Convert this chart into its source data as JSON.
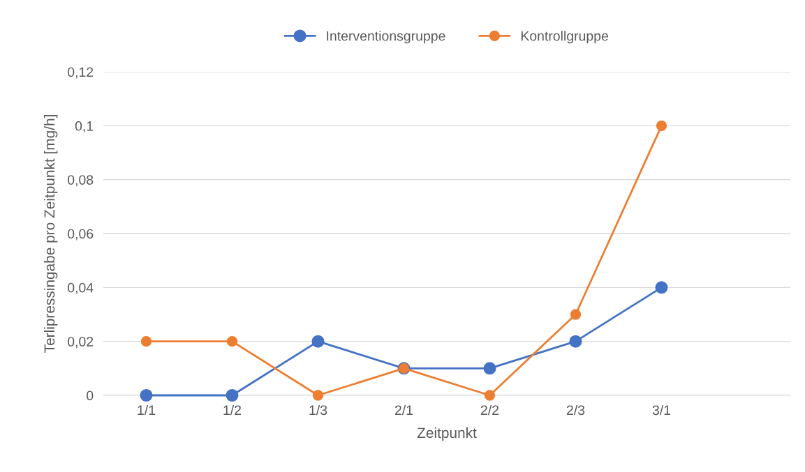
{
  "chart_data": {
    "type": "line",
    "xlabel": "Zeitpunkt",
    "ylabel": "Terlipressingabe pro Zeitpunkt [mg/h]",
    "categories": [
      "1/1",
      "1/2",
      "1/3",
      "2/1",
      "2/2",
      "2/3",
      "3/1",
      null
    ],
    "series": [
      {
        "name": "Interventionsgruppe",
        "color": "#4472c4",
        "values": [
          0,
          0,
          0.02,
          0.01,
          0.01,
          0.02,
          0.04,
          null
        ]
      },
      {
        "name": "Kontrollgruppe",
        "color": "#ed7d31",
        "values": [
          0.02,
          0.02,
          0,
          0.01,
          0,
          0.03,
          0.1,
          null
        ]
      }
    ],
    "ylim": [
      0,
      0.12
    ],
    "yticks": [
      0,
      {
        "value": 0.02,
        "label": "0,02"
      },
      {
        "value": 0.04,
        "label": "0,04"
      },
      {
        "value": 0.06,
        "label": "0,06"
      },
      {
        "value": 0.08,
        "label": "0,08"
      },
      {
        "value": 0.1,
        "label": "0,1"
      },
      {
        "value": 0.12,
        "label": "0,12"
      }
    ],
    "grid": "y",
    "legend": "top",
    "marker": "circle",
    "line_style": "solid"
  }
}
